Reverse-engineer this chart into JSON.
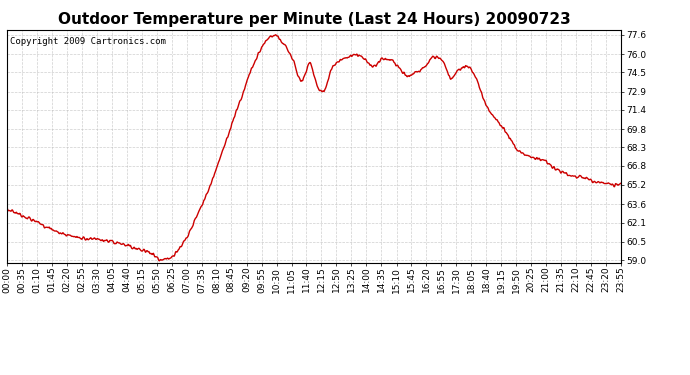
{
  "title": "Outdoor Temperature per Minute (Last 24 Hours) 20090723",
  "copyright": "Copyright 2009 Cartronics.com",
  "line_color": "#cc0000",
  "line_width": 1.0,
  "bg_color": "#ffffff",
  "plot_bg_color": "#ffffff",
  "grid_color": "#bbbbbb",
  "yticks": [
    59.0,
    60.5,
    62.1,
    63.6,
    65.2,
    66.8,
    68.3,
    69.8,
    71.4,
    72.9,
    74.5,
    76.0,
    77.6
  ],
  "ylim": [
    58.8,
    78.0
  ],
  "xlim": [
    0,
    1439
  ],
  "xtick_labels": [
    "00:00",
    "00:35",
    "01:10",
    "01:45",
    "02:20",
    "02:55",
    "03:30",
    "04:05",
    "04:40",
    "05:15",
    "05:50",
    "06:25",
    "07:00",
    "07:35",
    "08:10",
    "08:45",
    "09:20",
    "09:55",
    "10:30",
    "11:05",
    "11:40",
    "12:15",
    "12:50",
    "13:25",
    "14:00",
    "14:35",
    "15:10",
    "15:45",
    "16:20",
    "16:55",
    "17:30",
    "18:05",
    "18:40",
    "19:15",
    "19:50",
    "20:25",
    "21:00",
    "21:35",
    "22:10",
    "22:45",
    "23:20",
    "23:55"
  ],
  "title_fontsize": 11,
  "tick_fontsize": 6.5,
  "copyright_fontsize": 6.5,
  "anchors_x": [
    0,
    30,
    60,
    90,
    120,
    150,
    180,
    210,
    240,
    270,
    300,
    330,
    350,
    355,
    360,
    390,
    420,
    450,
    480,
    510,
    530,
    550,
    570,
    590,
    610,
    625,
    630,
    640,
    650,
    660,
    670,
    680,
    690,
    700,
    710,
    720,
    730,
    740,
    750,
    760,
    770,
    800,
    820,
    840,
    860,
    880,
    900,
    920,
    940,
    960,
    980,
    1000,
    1020,
    1040,
    1060,
    1080,
    1100,
    1110,
    1120,
    1130,
    1150,
    1180,
    1200,
    1230,
    1260,
    1290,
    1320,
    1350,
    1380,
    1410,
    1439
  ],
  "anchors_y": [
    63.2,
    62.8,
    62.3,
    61.8,
    61.3,
    61.0,
    60.8,
    60.7,
    60.5,
    60.3,
    60.0,
    59.7,
    59.3,
    59.1,
    59.0,
    59.4,
    60.8,
    63.0,
    65.5,
    68.5,
    70.5,
    72.5,
    74.5,
    76.0,
    77.2,
    77.5,
    77.6,
    77.2,
    76.8,
    76.2,
    75.5,
    74.5,
    73.8,
    74.5,
    75.3,
    74.2,
    73.2,
    72.9,
    73.5,
    74.8,
    75.2,
    75.8,
    76.0,
    75.5,
    75.0,
    75.6,
    75.5,
    74.8,
    74.2,
    74.5,
    75.0,
    75.8,
    75.5,
    74.0,
    74.8,
    75.0,
    74.0,
    73.0,
    72.0,
    71.4,
    70.5,
    69.0,
    68.0,
    67.5,
    67.2,
    66.5,
    66.0,
    65.8,
    65.5,
    65.3,
    65.2
  ]
}
